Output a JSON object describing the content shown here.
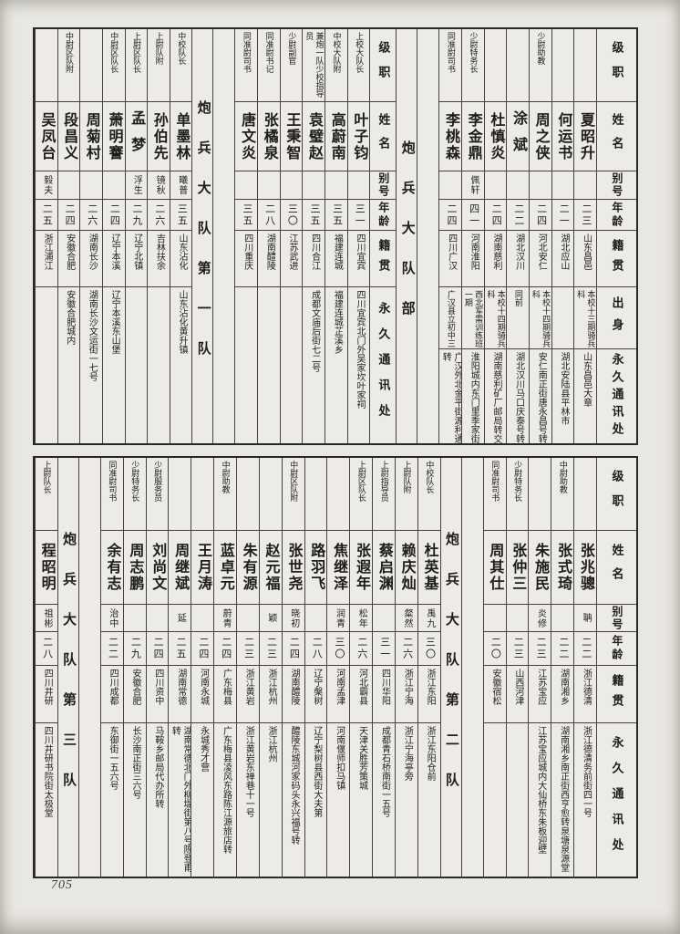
{
  "page": {
    "number": "705"
  },
  "tables": [
    {
      "name": "roster-upper",
      "row_labels_full": [
        "级职",
        "姓名",
        "别号",
        "年龄",
        "籍贯",
        "出身",
        "永久通讯处"
      ],
      "row_labels_short": [
        "级职",
        "姓名",
        "别号",
        "年龄",
        "籍贯",
        "永久通讯处"
      ],
      "columns": [
        {
          "kind": "header",
          "labels": "full"
        },
        {
          "kind": "person",
          "origin_row": true,
          "rank": "",
          "name": "夏昭升",
          "alias": "",
          "age": "二三",
          "native": "山东昌邑",
          "origin": "本校十三期骑兵科",
          "address": "山东昌邑大章"
        },
        {
          "kind": "person",
          "origin_row": true,
          "rank": "",
          "name": "何运书",
          "alias": "",
          "age": "二一",
          "native": "湖北应山",
          "origin": "",
          "address": "湖北安陆县平林市"
        },
        {
          "kind": "person",
          "origin_row": true,
          "rank": "少尉助教",
          "name": "周之侠",
          "alias": "",
          "age": "二四",
          "native": "河北安仁",
          "origin": "本校十四期骑兵科",
          "address": "安仁南正街唐永昌号转"
        },
        {
          "kind": "person",
          "origin_row": true,
          "rank": "",
          "name": "涂斌",
          "alias": "",
          "age": "二二",
          "native": "湖北汉川",
          "origin": "同前",
          "address": "湖北汉川马口庆泰号转"
        },
        {
          "kind": "person",
          "origin_row": true,
          "rank": "",
          "name": "杜慎炎",
          "alias": "",
          "age": "二四",
          "native": "湖南慈利",
          "origin": "本校十四期骑兵科",
          "address": "湖南慈利矿厂邮局转交"
        },
        {
          "kind": "person",
          "origin_row": true,
          "rank": "少尉特务长",
          "name": "李金鼎",
          "alias": "佩轩",
          "age": "四一",
          "native": "河南淮阳",
          "origin": "西北军需训练班一期",
          "address": "淮阳城内东门里季家街"
        },
        {
          "kind": "person",
          "origin_row": true,
          "rank": "同准尉司书",
          "name": "李桃森",
          "alias": "",
          "age": "二四",
          "native": "四川广汉",
          "origin": "广汉县立初中三",
          "address": "广汉外北金平街源利通转"
        },
        {
          "kind": "spacer"
        },
        {
          "kind": "section",
          "label": "炮兵大队部"
        },
        {
          "kind": "header",
          "labels": "short"
        },
        {
          "kind": "person",
          "origin_row": false,
          "rank": "上校大队长",
          "name": "叶子钧",
          "alias": "",
          "age": "三一",
          "native": "四川宜宾",
          "address": "四川宜宾北门外吴家坎叶家祠"
        },
        {
          "kind": "person",
          "origin_row": false,
          "rank": "中校大队附",
          "name": "高蔚南",
          "alias": "",
          "age": "三五",
          "native": "福建连城",
          "address": "福建连城芷溪乡"
        },
        {
          "kind": "person",
          "origin_row": false,
          "rank": "兼炮一队少校指导员",
          "name": "袁璧赵",
          "alias": "",
          "age": "三五",
          "native": "四川合江",
          "address": "成都文庙后街七二号"
        },
        {
          "kind": "person",
          "origin_row": false,
          "rank": "少尉副官",
          "name": "王秉智",
          "alias": "",
          "age": "三〇",
          "native": "江苏武进",
          "address": ""
        },
        {
          "kind": "person",
          "origin_row": false,
          "rank": "同准尉书记",
          "name": "张橘泉",
          "alias": "",
          "age": "二八",
          "native": "湖南醴陵",
          "address": ""
        },
        {
          "kind": "person",
          "origin_row": false,
          "rank": "同准尉司书",
          "name": "唐文炎",
          "alias": "",
          "age": "三五",
          "native": "四川重庆",
          "address": ""
        },
        {
          "kind": "spacer"
        },
        {
          "kind": "section",
          "label": "炮兵大队第一队"
        },
        {
          "kind": "person",
          "origin_row": false,
          "rank": "中校队长",
          "name": "单墨林",
          "alias": "曦普",
          "age": "三五",
          "native": "山东沾化",
          "address": "山东沾化黄升镇"
        },
        {
          "kind": "person",
          "origin_row": false,
          "rank": "上尉队附",
          "name": "孙伯先",
          "alias": "镜秋",
          "age": "二六",
          "native": "吉林扶余",
          "address": ""
        },
        {
          "kind": "person",
          "origin_row": false,
          "rank": "上尉区队长",
          "name": "孟梦",
          "alias": "浮生",
          "age": "二九",
          "native": "辽宁北镇",
          "address": ""
        },
        {
          "kind": "person",
          "origin_row": false,
          "rank": "中尉区队长",
          "name": "萧明謇",
          "alias": "",
          "age": "二四",
          "native": "辽宁本溪",
          "address": "辽宁本溪东山堡"
        },
        {
          "kind": "person",
          "origin_row": false,
          "rank": "",
          "name": "周菊村",
          "alias": "",
          "age": "二六",
          "native": "湖南长沙",
          "address": "湖南长沙文运街一七号"
        },
        {
          "kind": "person",
          "origin_row": false,
          "rank": "中尉区队附",
          "name": "段昌义",
          "alias": "",
          "age": "二四",
          "native": "安徽合肥",
          "address": "安徽合肥城内"
        },
        {
          "kind": "person",
          "origin_row": false,
          "rank": "",
          "name": "吴凤台",
          "alias": "毅夫",
          "age": "二五",
          "native": "浙江浦江",
          "address": ""
        }
      ]
    },
    {
      "name": "roster-lower",
      "row_labels_full": [
        "级职",
        "姓名",
        "别号",
        "年龄",
        "籍贯",
        "出身",
        "永久通讯处"
      ],
      "row_labels_short": [
        "级职",
        "姓名",
        "别号",
        "年龄",
        "籍贯",
        "永久通讯处"
      ],
      "columns": [
        {
          "kind": "header",
          "labels": "short"
        },
        {
          "kind": "person",
          "origin_row": false,
          "rank": "",
          "name": "张兆骢",
          "alias": "聃",
          "age": "二二",
          "native": "浙江德清",
          "address": "浙江德清务前街四一号"
        },
        {
          "kind": "person",
          "origin_row": false,
          "rank": "中尉助教",
          "name": "张式琦",
          "alias": "",
          "age": "二二",
          "native": "湖南湘乡",
          "address": "湖南湘乡南正街西亨愈转泉塘泉源堂"
        },
        {
          "kind": "person",
          "origin_row": false,
          "rank": "",
          "name": "朱施民",
          "alias": "炎修",
          "age": "二三",
          "native": "江苏宝应",
          "address": "江苏宝应城内大仙桥东朱板迎壁"
        },
        {
          "kind": "person",
          "origin_row": false,
          "rank": "少尉特务长",
          "name": "张仲三",
          "alias": "",
          "age": "二三",
          "native": "山西河津",
          "address": ""
        },
        {
          "kind": "person",
          "origin_row": false,
          "rank": "同准尉司书",
          "name": "周其仕",
          "alias": "",
          "age": "二〇",
          "native": "安徽宿松",
          "address": ""
        },
        {
          "kind": "spacer"
        },
        {
          "kind": "section",
          "label": "炮兵大队第二队"
        },
        {
          "kind": "person",
          "origin_row": false,
          "rank": "中校队长",
          "name": "杜英基",
          "alias": "禹九",
          "age": "三〇",
          "native": "浙江东阳",
          "address": "浙江东阳仓前"
        },
        {
          "kind": "person",
          "origin_row": false,
          "rank": "上尉队附",
          "name": "赖庆灿",
          "alias": "粲然",
          "age": "二六",
          "native": "浙江宁海",
          "address": "浙江宁海亭旁"
        },
        {
          "kind": "person",
          "origin_row": false,
          "rank": "上尉指导员",
          "name": "蔡启渊",
          "alias": "",
          "age": "三一",
          "native": "四川华阳",
          "address": "成都青石桥南街一五号"
        },
        {
          "kind": "person",
          "origin_row": false,
          "rank": "上尉区队长",
          "name": "张遐年",
          "alias": "松年",
          "age": "二六",
          "native": "河北霸县",
          "address": "天津关胜芳策城"
        },
        {
          "kind": "person",
          "origin_row": false,
          "rank": "",
          "name": "焦继泽",
          "alias": "润青",
          "age": "三〇",
          "native": "河南孟津",
          "address": "河南偃师扣马镇"
        },
        {
          "kind": "person",
          "origin_row": false,
          "rank": "",
          "name": "路羽飞",
          "alias": "",
          "age": "二八",
          "native": "辽宁槃树",
          "address": "辽宁梨树县西街大夫第"
        },
        {
          "kind": "person",
          "origin_row": false,
          "rank": "中尉区队附",
          "name": "张世尧",
          "alias": "晓初",
          "age": "二四",
          "native": "湖南醴陵",
          "address": "醴陵东城河家码头永兴福号转"
        },
        {
          "kind": "person",
          "origin_row": false,
          "rank": "",
          "name": "赵元福",
          "alias": "颖",
          "age": "二三",
          "native": "浙江杭州",
          "address": "浙江杭州"
        },
        {
          "kind": "person",
          "origin_row": false,
          "rank": "",
          "name": "朱有源",
          "alias": "",
          "age": "二三",
          "native": "浙江黄岩",
          "address": "浙江黄岩东禅巷十一号"
        },
        {
          "kind": "person",
          "origin_row": false,
          "rank": "中尉助教",
          "name": "蓝卓元",
          "alias": "蔚青",
          "age": "二四",
          "native": "广东梅县",
          "address": "广东梅县凌风东路陈江源旅店转"
        },
        {
          "kind": "person",
          "origin_row": false,
          "rank": "",
          "name": "王月涛",
          "alias": "",
          "age": "二四",
          "native": "河南永城",
          "address": "永城秀才营"
        },
        {
          "kind": "person",
          "origin_row": false,
          "rank": "",
          "name": "周继斌",
          "alias": "延",
          "age": "二五",
          "native": "湖南常德",
          "address": "湖南常德北门外柳堤街第八号陈登甫转"
        },
        {
          "kind": "person",
          "origin_row": false,
          "rank": "少尉服务员",
          "name": "刘尚文",
          "alias": "",
          "age": "二四",
          "native": "四川资中",
          "address": "马鞍乡邮局代办所转"
        },
        {
          "kind": "person",
          "origin_row": false,
          "rank": "少尉特务长",
          "name": "周志鹏",
          "alias": "",
          "age": "二九",
          "native": "安徽合肥",
          "address": "长沙南正街三六号"
        },
        {
          "kind": "person",
          "origin_row": false,
          "rank": "同准尉司书",
          "name": "余有志",
          "alias": "治中",
          "age": "二二",
          "native": "四川成都",
          "address": "东御街一五六号"
        },
        {
          "kind": "spacer"
        },
        {
          "kind": "section",
          "label": "炮兵大队第三队"
        },
        {
          "kind": "person",
          "origin_row": false,
          "rank": "上尉队长",
          "name": "程昭明",
          "alias": "祖彬",
          "age": "二八",
          "native": "四川井研",
          "address": "四川井研书院街太极堂"
        }
      ]
    }
  ]
}
